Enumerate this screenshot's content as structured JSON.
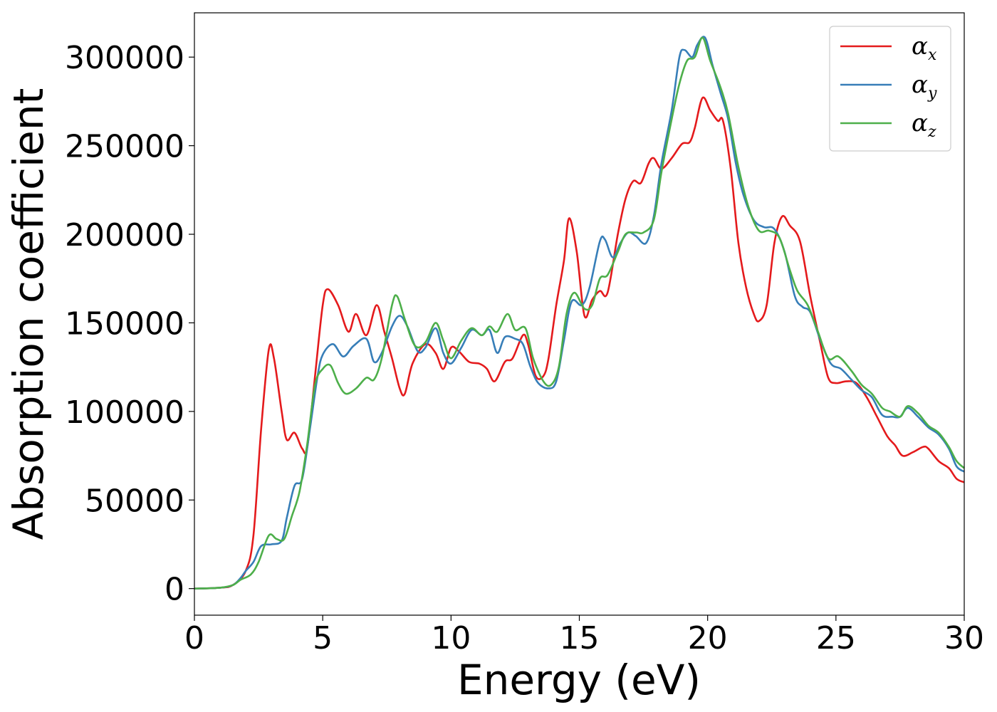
{
  "chart_data": {
    "type": "line",
    "xlabel": "Energy (eV)",
    "ylabel": "Absorption coefficient",
    "xlim": [
      0,
      30
    ],
    "ylim": [
      -15000,
      325000
    ],
    "xticks": [
      0,
      5,
      10,
      15,
      20,
      25,
      30
    ],
    "xtick_labels": [
      "0",
      "5",
      "10",
      "15",
      "20",
      "25",
      "30"
    ],
    "yticks": [
      0,
      50000,
      100000,
      150000,
      200000,
      250000,
      300000
    ],
    "ytick_labels": [
      "0",
      "50000",
      "100000",
      "150000",
      "200000",
      "250000",
      "300000"
    ],
    "grid": false,
    "legend_position": "top-right",
    "series": [
      {
        "name": "α_x",
        "legend_base": "α",
        "legend_sub": "x",
        "color": "#e41a1c",
        "points": [
          [
            0,
            0
          ],
          [
            1,
            500
          ],
          [
            1.5,
            2000
          ],
          [
            2,
            10000
          ],
          [
            2.3,
            30000
          ],
          [
            2.6,
            90000
          ],
          [
            2.9,
            135000
          ],
          [
            3.1,
            130000
          ],
          [
            3.4,
            100000
          ],
          [
            3.6,
            84000
          ],
          [
            3.9,
            88000
          ],
          [
            4.2,
            79000
          ],
          [
            4.4,
            80000
          ],
          [
            4.7,
            120000
          ],
          [
            5.0,
            160000
          ],
          [
            5.2,
            169000
          ],
          [
            5.6,
            160000
          ],
          [
            6.0,
            145000
          ],
          [
            6.3,
            155000
          ],
          [
            6.7,
            143000
          ],
          [
            7.1,
            160000
          ],
          [
            7.4,
            145000
          ],
          [
            7.7,
            130000
          ],
          [
            8.0,
            113000
          ],
          [
            8.2,
            110000
          ],
          [
            8.5,
            127000
          ],
          [
            9.0,
            138000
          ],
          [
            9.4,
            133000
          ],
          [
            9.7,
            124000
          ],
          [
            10.0,
            136000
          ],
          [
            10.3,
            134000
          ],
          [
            10.7,
            128000
          ],
          [
            11.1,
            127000
          ],
          [
            11.4,
            124000
          ],
          [
            11.7,
            117000
          ],
          [
            12.1,
            128000
          ],
          [
            12.4,
            130000
          ],
          [
            12.8,
            143000
          ],
          [
            13.0,
            138000
          ],
          [
            13.3,
            120000
          ],
          [
            13.6,
            120000
          ],
          [
            13.8,
            130000
          ],
          [
            14.1,
            160000
          ],
          [
            14.4,
            185000
          ],
          [
            14.6,
            209000
          ],
          [
            14.9,
            190000
          ],
          [
            15.2,
            154000
          ],
          [
            15.5,
            163000
          ],
          [
            15.8,
            168000
          ],
          [
            16.1,
            167000
          ],
          [
            16.5,
            200000
          ],
          [
            16.8,
            220000
          ],
          [
            17.1,
            230000
          ],
          [
            17.4,
            229000
          ],
          [
            17.7,
            240000
          ],
          [
            17.9,
            243000
          ],
          [
            18.2,
            237000
          ],
          [
            18.6,
            243000
          ],
          [
            19.0,
            251000
          ],
          [
            19.3,
            252000
          ],
          [
            19.5,
            260000
          ],
          [
            19.8,
            277000
          ],
          [
            20.1,
            270000
          ],
          [
            20.4,
            264000
          ],
          [
            20.6,
            264000
          ],
          [
            20.9,
            237000
          ],
          [
            21.2,
            195000
          ],
          [
            21.5,
            170000
          ],
          [
            21.8,
            155000
          ],
          [
            22.0,
            151000
          ],
          [
            22.3,
            160000
          ],
          [
            22.6,
            195000
          ],
          [
            22.9,
            210000
          ],
          [
            23.2,
            205000
          ],
          [
            23.6,
            196000
          ],
          [
            24.0,
            165000
          ],
          [
            24.4,
            138000
          ],
          [
            24.7,
            119000
          ],
          [
            25.0,
            116000
          ],
          [
            25.4,
            117000
          ],
          [
            25.8,
            116000
          ],
          [
            26.2,
            108000
          ],
          [
            26.6,
            97000
          ],
          [
            27.0,
            86000
          ],
          [
            27.3,
            81000
          ],
          [
            27.6,
            75000
          ],
          [
            28.0,
            77000
          ],
          [
            28.4,
            80000
          ],
          [
            28.6,
            79000
          ],
          [
            29.0,
            72000
          ],
          [
            29.4,
            68000
          ],
          [
            29.7,
            62000
          ],
          [
            30.0,
            60000
          ]
        ]
      },
      {
        "name": "α_y",
        "legend_base": "α",
        "legend_sub": "y",
        "color": "#377eb8",
        "points": [
          [
            0,
            0
          ],
          [
            1,
            500
          ],
          [
            1.5,
            2000
          ],
          [
            1.8,
            6000
          ],
          [
            2.0,
            10000
          ],
          [
            2.3,
            15000
          ],
          [
            2.6,
            24000
          ],
          [
            3.0,
            25000
          ],
          [
            3.4,
            27000
          ],
          [
            3.6,
            40000
          ],
          [
            3.9,
            58000
          ],
          [
            4.2,
            62000
          ],
          [
            4.5,
            90000
          ],
          [
            4.8,
            120000
          ],
          [
            5.0,
            132000
          ],
          [
            5.4,
            138000
          ],
          [
            5.8,
            131000
          ],
          [
            6.2,
            137000
          ],
          [
            6.7,
            141000
          ],
          [
            7.0,
            128000
          ],
          [
            7.3,
            133000
          ],
          [
            7.7,
            148000
          ],
          [
            8.0,
            154000
          ],
          [
            8.3,
            148000
          ],
          [
            8.7,
            134000
          ],
          [
            9.0,
            136000
          ],
          [
            9.4,
            147000
          ],
          [
            9.7,
            133000
          ],
          [
            10.0,
            127000
          ],
          [
            10.4,
            136000
          ],
          [
            10.8,
            146000
          ],
          [
            11.2,
            143000
          ],
          [
            11.5,
            146000
          ],
          [
            11.8,
            133000
          ],
          [
            12.1,
            142000
          ],
          [
            12.5,
            141000
          ],
          [
            12.8,
            138000
          ],
          [
            13.1,
            125000
          ],
          [
            13.4,
            116000
          ],
          [
            13.8,
            113000
          ],
          [
            14.1,
            117000
          ],
          [
            14.4,
            140000
          ],
          [
            14.7,
            162000
          ],
          [
            15.1,
            160000
          ],
          [
            15.4,
            170000
          ],
          [
            15.8,
            196000
          ],
          [
            16.0,
            197000
          ],
          [
            16.3,
            187000
          ],
          [
            16.6,
            195000
          ],
          [
            16.9,
            201000
          ],
          [
            17.2,
            199000
          ],
          [
            17.6,
            195000
          ],
          [
            17.9,
            210000
          ],
          [
            18.2,
            240000
          ],
          [
            18.6,
            270000
          ],
          [
            18.9,
            300000
          ],
          [
            19.1,
            304000
          ],
          [
            19.4,
            300000
          ],
          [
            19.6,
            307000
          ],
          [
            19.9,
            311000
          ],
          [
            20.2,
            295000
          ],
          [
            20.5,
            280000
          ],
          [
            20.8,
            265000
          ],
          [
            21.1,
            240000
          ],
          [
            21.4,
            222000
          ],
          [
            21.8,
            208000
          ],
          [
            22.2,
            204000
          ],
          [
            22.6,
            203000
          ],
          [
            23.0,
            190000
          ],
          [
            23.4,
            165000
          ],
          [
            23.7,
            159000
          ],
          [
            24.0,
            156000
          ],
          [
            24.4,
            140000
          ],
          [
            24.8,
            127000
          ],
          [
            25.2,
            124000
          ],
          [
            25.6,
            118000
          ],
          [
            26.0,
            112000
          ],
          [
            26.4,
            108000
          ],
          [
            26.8,
            98000
          ],
          [
            27.2,
            97000
          ],
          [
            27.5,
            97000
          ],
          [
            27.8,
            102000
          ],
          [
            28.2,
            97000
          ],
          [
            28.6,
            91000
          ],
          [
            29.0,
            87000
          ],
          [
            29.4,
            79000
          ],
          [
            29.7,
            69000
          ],
          [
            30.0,
            66000
          ]
        ]
      },
      {
        "name": "α_z",
        "legend_base": "α",
        "legend_sub": "z",
        "color": "#4daf4a",
        "points": [
          [
            0,
            0
          ],
          [
            1,
            500
          ],
          [
            1.5,
            2000
          ],
          [
            1.8,
            5000
          ],
          [
            2.2,
            8000
          ],
          [
            2.5,
            15000
          ],
          [
            2.9,
            30000
          ],
          [
            3.2,
            28000
          ],
          [
            3.5,
            28000
          ],
          [
            3.8,
            41000
          ],
          [
            4.1,
            55000
          ],
          [
            4.4,
            82000
          ],
          [
            4.7,
            115000
          ],
          [
            5.0,
            124000
          ],
          [
            5.3,
            126000
          ],
          [
            5.6,
            116000
          ],
          [
            5.9,
            110000
          ],
          [
            6.3,
            113000
          ],
          [
            6.7,
            119000
          ],
          [
            7.0,
            118000
          ],
          [
            7.3,
            130000
          ],
          [
            7.7,
            160000
          ],
          [
            7.9,
            165000
          ],
          [
            8.2,
            152000
          ],
          [
            8.6,
            137000
          ],
          [
            9.0,
            139000
          ],
          [
            9.4,
            150000
          ],
          [
            9.7,
            140000
          ],
          [
            10.0,
            130000
          ],
          [
            10.4,
            140000
          ],
          [
            10.8,
            147000
          ],
          [
            11.2,
            143000
          ],
          [
            11.5,
            148000
          ],
          [
            11.8,
            145000
          ],
          [
            12.2,
            155000
          ],
          [
            12.5,
            146000
          ],
          [
            12.9,
            147000
          ],
          [
            13.2,
            130000
          ],
          [
            13.6,
            117000
          ],
          [
            13.9,
            115000
          ],
          [
            14.2,
            125000
          ],
          [
            14.5,
            155000
          ],
          [
            14.8,
            167000
          ],
          [
            15.2,
            158000
          ],
          [
            15.5,
            160000
          ],
          [
            15.8,
            175000
          ],
          [
            16.1,
            177000
          ],
          [
            16.5,
            190000
          ],
          [
            16.8,
            200000
          ],
          [
            17.2,
            201000
          ],
          [
            17.5,
            201000
          ],
          [
            17.9,
            208000
          ],
          [
            18.2,
            235000
          ],
          [
            18.6,
            265000
          ],
          [
            18.9,
            285000
          ],
          [
            19.2,
            298000
          ],
          [
            19.5,
            300000
          ],
          [
            19.8,
            311000
          ],
          [
            20.1,
            298000
          ],
          [
            20.5,
            283000
          ],
          [
            20.8,
            268000
          ],
          [
            21.2,
            238000
          ],
          [
            21.6,
            215000
          ],
          [
            22.0,
            202000
          ],
          [
            22.4,
            202000
          ],
          [
            22.8,
            198000
          ],
          [
            23.2,
            180000
          ],
          [
            23.5,
            168000
          ],
          [
            23.9,
            160000
          ],
          [
            24.3,
            145000
          ],
          [
            24.7,
            130000
          ],
          [
            25.1,
            131000
          ],
          [
            25.6,
            123000
          ],
          [
            26.0,
            115000
          ],
          [
            26.4,
            110000
          ],
          [
            26.8,
            102000
          ],
          [
            27.1,
            100000
          ],
          [
            27.5,
            97000
          ],
          [
            27.8,
            103000
          ],
          [
            28.2,
            99000
          ],
          [
            28.6,
            92000
          ],
          [
            29.0,
            88000
          ],
          [
            29.4,
            80000
          ],
          [
            29.7,
            72000
          ],
          [
            30.0,
            68000
          ]
        ]
      }
    ]
  }
}
